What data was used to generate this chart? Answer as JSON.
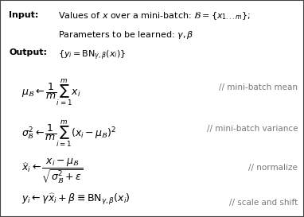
{
  "fig_width": 3.82,
  "fig_height": 2.73,
  "dpi": 100,
  "background_color": "#e8e8e8",
  "box_color": "white",
  "border_color": "#444444",
  "text_color": "black",
  "comment_color": "#777777",
  "input_label": "Input:",
  "input_line1": "Values of $x$ over a mini-batch: $\\mathcal{B} = \\{x_{1...m}\\}$;",
  "input_line2": "Parameters to be learned: $\\gamma, \\beta$",
  "output_label": "Output:",
  "output_line": "$\\{y_i = \\mathrm{BN}_{\\gamma,\\beta}(x_i)\\}$",
  "eq1": "$\\mu_\\mathcal{B} \\leftarrow \\dfrac{1}{m}\\sum_{i=1}^{m} x_i$",
  "eq1_comment": "// mini-batch mean",
  "eq2": "$\\sigma_\\mathcal{B}^2 \\leftarrow \\dfrac{1}{m}\\sum_{i=1}^{m}(x_i - \\mu_\\mathcal{B})^2$",
  "eq2_comment": "// mini-batch variance",
  "eq3": "$\\widehat{x}_i \\leftarrow \\dfrac{x_i - \\mu_\\mathcal{B}}{\\sqrt{\\sigma_\\mathcal{B}^2 + \\epsilon}}$",
  "eq3_comment": "// normalize",
  "eq4": "$y_i \\leftarrow \\gamma\\widehat{x}_i + \\beta \\equiv \\mathrm{BN}_{\\gamma,\\beta}(x_i)$",
  "eq4_comment": "// scale and shift"
}
